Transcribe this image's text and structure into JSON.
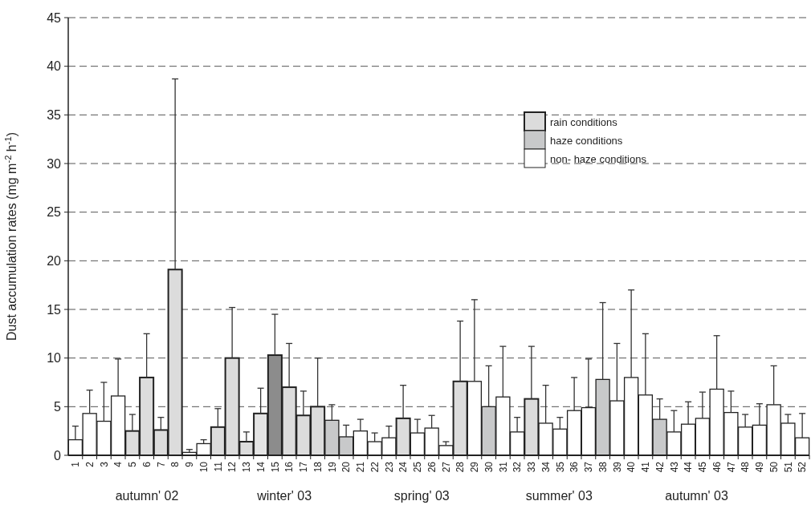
{
  "chart_data": {
    "type": "bar",
    "ylabel": "Dust accumulation rates (mg m$^{-2}$ h$^{-1}$)",
    "categories": [
      "1",
      "2",
      "3",
      "4",
      "5",
      "6",
      "7",
      "8",
      "9",
      "10",
      "11",
      "12",
      "13",
      "14",
      "15",
      "16",
      "17",
      "18",
      "19",
      "20",
      "21",
      "22",
      "23",
      "24",
      "25",
      "26",
      "27",
      "28",
      "29",
      "30",
      "31",
      "32",
      "33",
      "34",
      "35",
      "36",
      "37",
      "38",
      "39",
      "40",
      "41",
      "42",
      "43",
      "44",
      "45",
      "46",
      "47",
      "48",
      "49",
      "50",
      "51",
      "52"
    ],
    "series": [
      {
        "name": "rain conditions",
        "color": "#dcdcdc",
        "colors": [
          null,
          null,
          null,
          null,
          "#dcdcdc",
          "#dcdcdc",
          "#dcdcdc",
          "#dcdcdc",
          null,
          null,
          "#dcdcdc",
          "#dcdcdc",
          "#dcdcdc",
          "#e4e4e4",
          "#8c8c8c",
          "#dcdcdc",
          "#dcdcdc",
          "#dcdcdc",
          null,
          null,
          null,
          null,
          null,
          "#dcdcdc",
          null,
          null,
          null,
          "#dcdcdc",
          null,
          null,
          null,
          null,
          "#dcdcdc",
          null,
          null,
          null,
          null,
          null,
          null,
          null,
          null,
          null,
          null,
          null,
          null,
          null,
          null,
          null,
          null,
          null,
          null,
          null
        ],
        "values": [
          null,
          null,
          null,
          null,
          2.5,
          8.0,
          2.6,
          19.1,
          null,
          null,
          2.9,
          10.0,
          1.4,
          4.3,
          10.3,
          7.0,
          4.1,
          5.0,
          null,
          null,
          null,
          null,
          null,
          3.8,
          null,
          null,
          null,
          7.6,
          null,
          null,
          null,
          null,
          5.8,
          null,
          null,
          null,
          null,
          null,
          null,
          null,
          null,
          null,
          null,
          null,
          null,
          null,
          null,
          null,
          null,
          null,
          null,
          null
        ],
        "errors": [
          null,
          null,
          null,
          null,
          [
            2.5,
            4.2
          ],
          [
            8.0,
            12.5
          ],
          [
            2.6,
            3.9
          ],
          [
            19.1,
            38.7
          ],
          null,
          null,
          [
            2.9,
            4.8
          ],
          [
            10.0,
            15.2
          ],
          [
            1.4,
            2.4
          ],
          [
            4.3,
            6.9
          ],
          [
            10.3,
            14.5
          ],
          [
            7.0,
            11.5
          ],
          [
            4.1,
            6.6
          ],
          [
            5.0,
            10.0
          ],
          null,
          null,
          null,
          null,
          null,
          [
            3.8,
            7.2
          ],
          null,
          null,
          null,
          [
            7.6,
            13.8
          ],
          null,
          null,
          null,
          null,
          [
            5.8,
            11.2
          ],
          null,
          null,
          null,
          null,
          null,
          null,
          null,
          null,
          null,
          null,
          null,
          null,
          null,
          null,
          null,
          null,
          null,
          null,
          null
        ]
      },
      {
        "name": "haze conditions",
        "color": "#c8c9ca",
        "values": [
          null,
          null,
          null,
          null,
          null,
          null,
          null,
          null,
          null,
          null,
          null,
          null,
          null,
          null,
          null,
          null,
          null,
          null,
          3.6,
          1.9,
          null,
          null,
          null,
          null,
          null,
          null,
          null,
          null,
          null,
          5.0,
          null,
          null,
          null,
          null,
          null,
          null,
          null,
          7.8,
          null,
          null,
          null,
          3.7,
          null,
          null,
          null,
          null,
          null,
          null,
          null,
          null,
          null,
          null
        ],
        "errors": [
          null,
          null,
          null,
          null,
          null,
          null,
          null,
          null,
          null,
          null,
          null,
          null,
          null,
          null,
          null,
          null,
          null,
          null,
          [
            3.6,
            5.2
          ],
          [
            1.9,
            3.1
          ],
          null,
          null,
          null,
          null,
          null,
          null,
          null,
          null,
          null,
          [
            5.0,
            9.2
          ],
          null,
          null,
          null,
          null,
          null,
          null,
          null,
          [
            7.8,
            15.7
          ],
          null,
          null,
          null,
          [
            3.7,
            5.8
          ],
          null,
          null,
          null,
          null,
          null,
          null,
          null,
          null,
          null,
          null
        ]
      },
      {
        "name": "non- haze conditions",
        "color": "#ffffff",
        "values": [
          1.6,
          4.3,
          3.5,
          6.1,
          null,
          null,
          null,
          null,
          0.3,
          1.2,
          null,
          null,
          null,
          null,
          null,
          null,
          null,
          null,
          null,
          null,
          2.5,
          1.4,
          1.8,
          null,
          2.3,
          2.8,
          1.0,
          null,
          7.6,
          null,
          6.0,
          2.4,
          null,
          3.3,
          2.7,
          4.6,
          4.9,
          null,
          5.6,
          8.0,
          6.2,
          null,
          2.4,
          3.2,
          3.8,
          6.8,
          4.4,
          2.9,
          3.1,
          5.2,
          3.3,
          1.8
        ],
        "errors": [
          [
            1.6,
            3.0
          ],
          [
            4.3,
            6.7
          ],
          [
            3.5,
            7.5
          ],
          [
            6.1,
            9.9
          ],
          null,
          null,
          null,
          null,
          [
            0.3,
            0.6
          ],
          [
            1.2,
            1.6
          ],
          null,
          null,
          null,
          null,
          null,
          null,
          null,
          null,
          null,
          null,
          [
            2.5,
            3.7
          ],
          [
            1.4,
            2.3
          ],
          [
            1.8,
            3.0
          ],
          null,
          [
            2.3,
            3.7
          ],
          [
            2.8,
            4.1
          ],
          [
            1.0,
            1.4
          ],
          null,
          [
            7.6,
            16.0
          ],
          null,
          [
            6.0,
            11.2
          ],
          [
            2.4,
            3.9
          ],
          null,
          [
            3.3,
            7.2
          ],
          [
            2.7,
            3.9
          ],
          [
            4.6,
            8.0
          ],
          [
            4.9,
            9.9
          ],
          null,
          [
            5.6,
            11.5
          ],
          [
            8.0,
            17.0
          ],
          [
            6.2,
            12.5
          ],
          null,
          [
            2.4,
            4.6
          ],
          [
            3.2,
            5.5
          ],
          [
            3.8,
            6.5
          ],
          [
            6.8,
            12.3
          ],
          [
            4.4,
            6.6
          ],
          [
            2.9,
            4.2
          ],
          [
            3.1,
            5.3
          ],
          [
            5.2,
            9.2
          ],
          [
            3.3,
            4.2
          ],
          [
            1.8,
            4.3
          ]
        ]
      }
    ],
    "ylim": [
      0,
      45
    ],
    "yticks": [
      0,
      5,
      10,
      15,
      20,
      25,
      30,
      35,
      40,
      45
    ],
    "grid": "y",
    "legend": "top right",
    "annotations": [
      "autumn' 02",
      "winter' 03",
      "spring' 03",
      "summer' 03",
      "autumn' 03"
    ]
  }
}
